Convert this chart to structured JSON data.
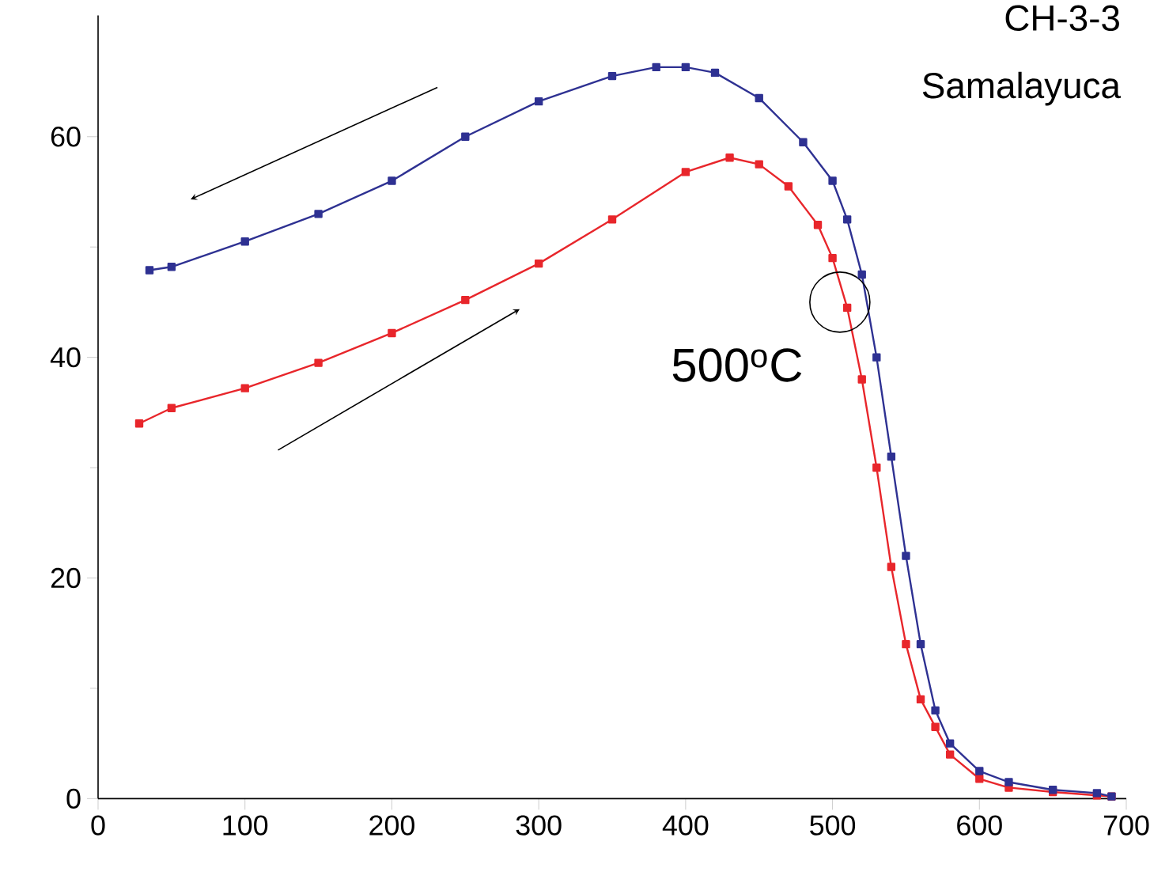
{
  "chart_data": {
    "type": "line",
    "marker": "square",
    "line_style": "solid",
    "xlim": [
      0,
      700
    ],
    "ylim": [
      0,
      71
    ],
    "xticks": [
      0,
      100,
      200,
      300,
      400,
      500,
      600,
      700
    ],
    "yticks": [
      0,
      20,
      40,
      60
    ],
    "annotations": [
      "CH-3-3",
      "Samalayuca",
      {
        "text": "500$^{o}$C",
        "x": 505,
        "y": 45
      }
    ],
    "series": [
      {
        "color": "#e8262b",
        "x": [
          28,
          50,
          100,
          150,
          200,
          250,
          300,
          350,
          400,
          430,
          450,
          470,
          490,
          500,
          510,
          520,
          530,
          540,
          550,
          560,
          570,
          580,
          600,
          620,
          650,
          680,
          690
        ],
        "values": [
          34,
          35.4,
          37.2,
          39.5,
          42.2,
          45.2,
          48.5,
          52.5,
          56.8,
          58.1,
          57.5,
          55.5,
          52,
          49,
          44.5,
          38,
          30,
          21,
          14,
          9,
          6.5,
          4,
          1.8,
          1,
          0.6,
          0.3,
          0.2
        ]
      },
      {
        "color": "#2e3192",
        "x": [
          35,
          50,
          100,
          150,
          200,
          250,
          300,
          350,
          380,
          400,
          420,
          450,
          480,
          500,
          510,
          520,
          530,
          540,
          550,
          560,
          570,
          580,
          600,
          620,
          650,
          680,
          690
        ],
        "values": [
          47.9,
          48.2,
          50.5,
          53,
          56,
          60,
          63.2,
          65.5,
          66.3,
          66.3,
          65.8,
          63.5,
          59.5,
          56,
          52.5,
          47.5,
          40,
          31,
          22,
          14,
          8,
          5,
          2.5,
          1.5,
          0.8,
          0.5,
          0.2
        ]
      }
    ]
  }
}
